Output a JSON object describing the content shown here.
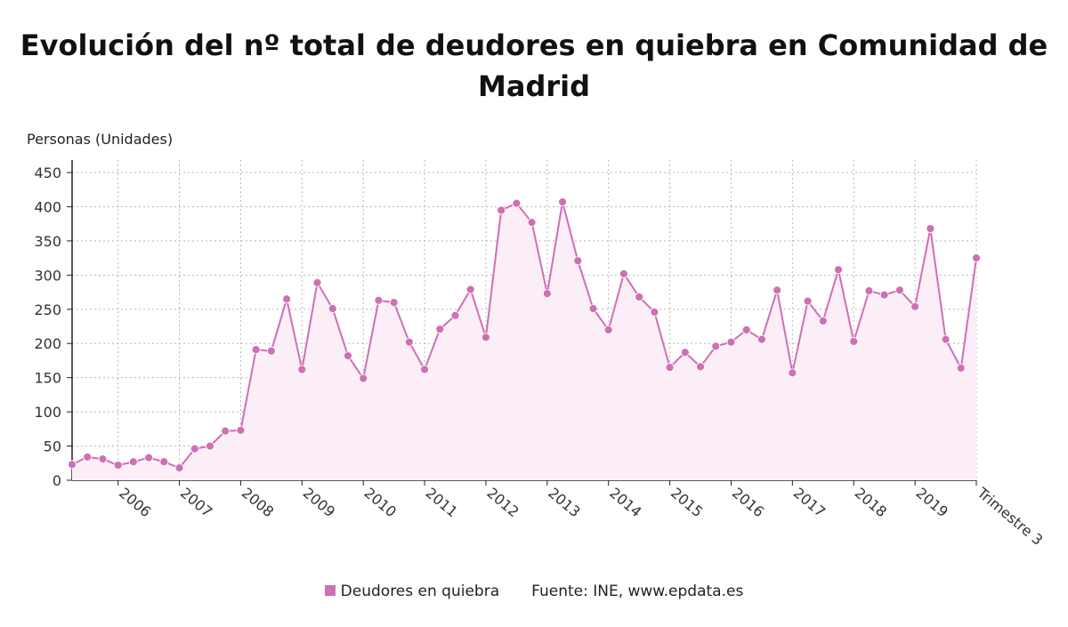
{
  "title_lines": [
    "Evolución del nº total de deudores en quiebra en Comunidad de",
    "Madrid"
  ],
  "legend": {
    "series_label": "Deudores en quiebra",
    "source": "Fuente: INE, www.epdata.es"
  },
  "colors": {
    "series": "#cf6fb5",
    "fill": "#fbeef7",
    "grid": "#b8b8b8",
    "axis": "#222222"
  },
  "chart_data": {
    "type": "area",
    "title": "Evolución del nº total de deudores en quiebra en Comunidad de Madrid",
    "ylabel": "Personas (Unidades)",
    "xlabel": "",
    "ylim": [
      0,
      450
    ],
    "yticks": [
      0,
      50,
      100,
      150,
      200,
      250,
      300,
      350,
      400,
      450
    ],
    "xtick_labels": [
      "2006",
      "2007",
      "2008",
      "2009",
      "2010",
      "2011",
      "2012",
      "2013",
      "2014",
      "2015",
      "2016",
      "2017",
      "2018",
      "2019",
      "Trimestre 3"
    ],
    "grid": true,
    "legend_position": "bottom",
    "series": [
      {
        "name": "Deudores en quiebra",
        "values": [
          23,
          34,
          31,
          22,
          27,
          33,
          27,
          18,
          46,
          50,
          72,
          73,
          191,
          189,
          265,
          162,
          289,
          251,
          182,
          149,
          263,
          260,
          202,
          162,
          221,
          241,
          279,
          209,
          395,
          405,
          377,
          273,
          407,
          321,
          251,
          220,
          302,
          268,
          246,
          165,
          187,
          166,
          196,
          202,
          220,
          206,
          278,
          157,
          262,
          233,
          308,
          203,
          277,
          271,
          278,
          254,
          368,
          206,
          164,
          325
        ]
      }
    ]
  }
}
